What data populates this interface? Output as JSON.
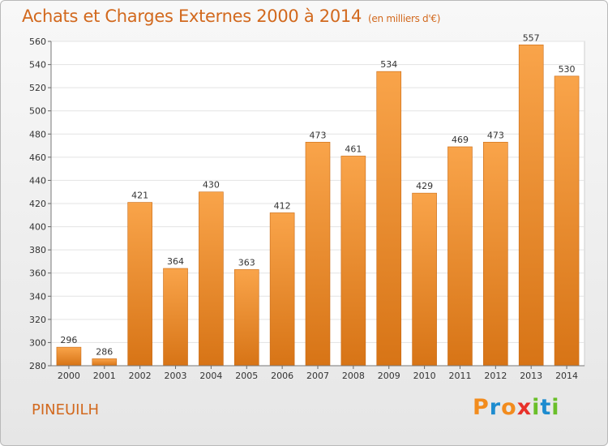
{
  "title": "Achats et Charges Externes 2000 à 2014",
  "unit": "(en milliers d'€)",
  "commune": "PINEUILH",
  "logo": {
    "letters": [
      "P",
      "r",
      "o",
      "x",
      "i",
      "t",
      "i"
    ],
    "colors": [
      "#f28c1e",
      "#1e8ccf",
      "#f28c1e",
      "#e8312a",
      "#6abf2a",
      "#1e8ccf",
      "#6abf2a"
    ]
  },
  "chart_data": {
    "type": "bar",
    "categories": [
      "2000",
      "2001",
      "2002",
      "2003",
      "2004",
      "2005",
      "2006",
      "2007",
      "2008",
      "2009",
      "2010",
      "2011",
      "2012",
      "2013",
      "2014"
    ],
    "values": [
      296,
      286,
      421,
      364,
      430,
      363,
      412,
      473,
      461,
      534,
      429,
      469,
      473,
      557,
      530
    ],
    "ylim": [
      280,
      560
    ],
    "yticks": [
      280,
      300,
      320,
      340,
      360,
      380,
      400,
      420,
      440,
      460,
      480,
      500,
      520,
      540,
      560
    ],
    "grid": true,
    "bar_color_top": "#f9a44a",
    "bar_color_bottom": "#d77416"
  }
}
